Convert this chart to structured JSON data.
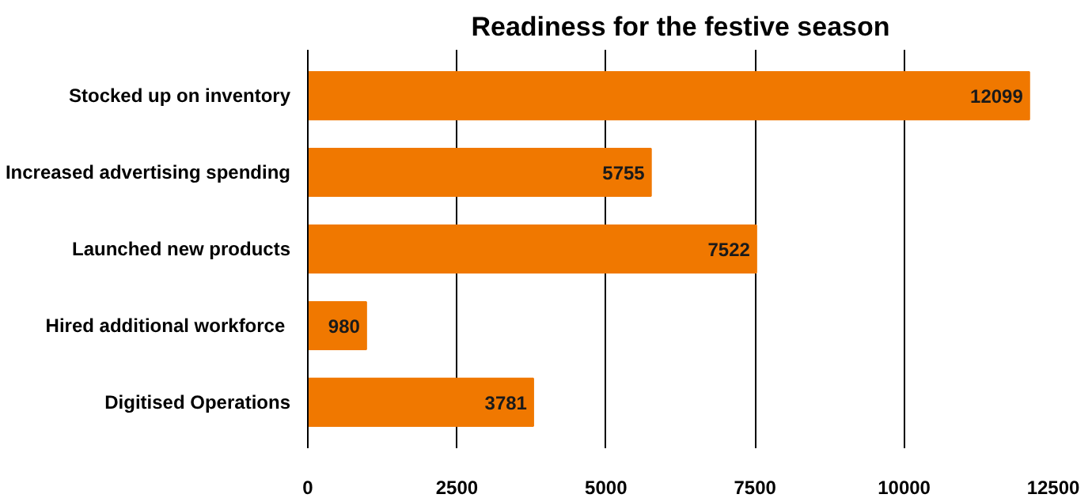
{
  "chart_data": {
    "type": "bar",
    "orientation": "horizontal",
    "title": "Readiness for the festive season",
    "categories": [
      "Stocked up on inventory",
      "Increased advertising spending",
      "Launched new products",
      "Hired additional  workforce",
      "Digitised Operations"
    ],
    "values": [
      12099,
      5755,
      7522,
      980,
      3781
    ],
    "color": "#f07800",
    "xlim": [
      0,
      12500
    ],
    "xticks": [
      0,
      2500,
      5000,
      7500,
      10000,
      12500
    ],
    "grid": "x",
    "data_labels": true
  }
}
